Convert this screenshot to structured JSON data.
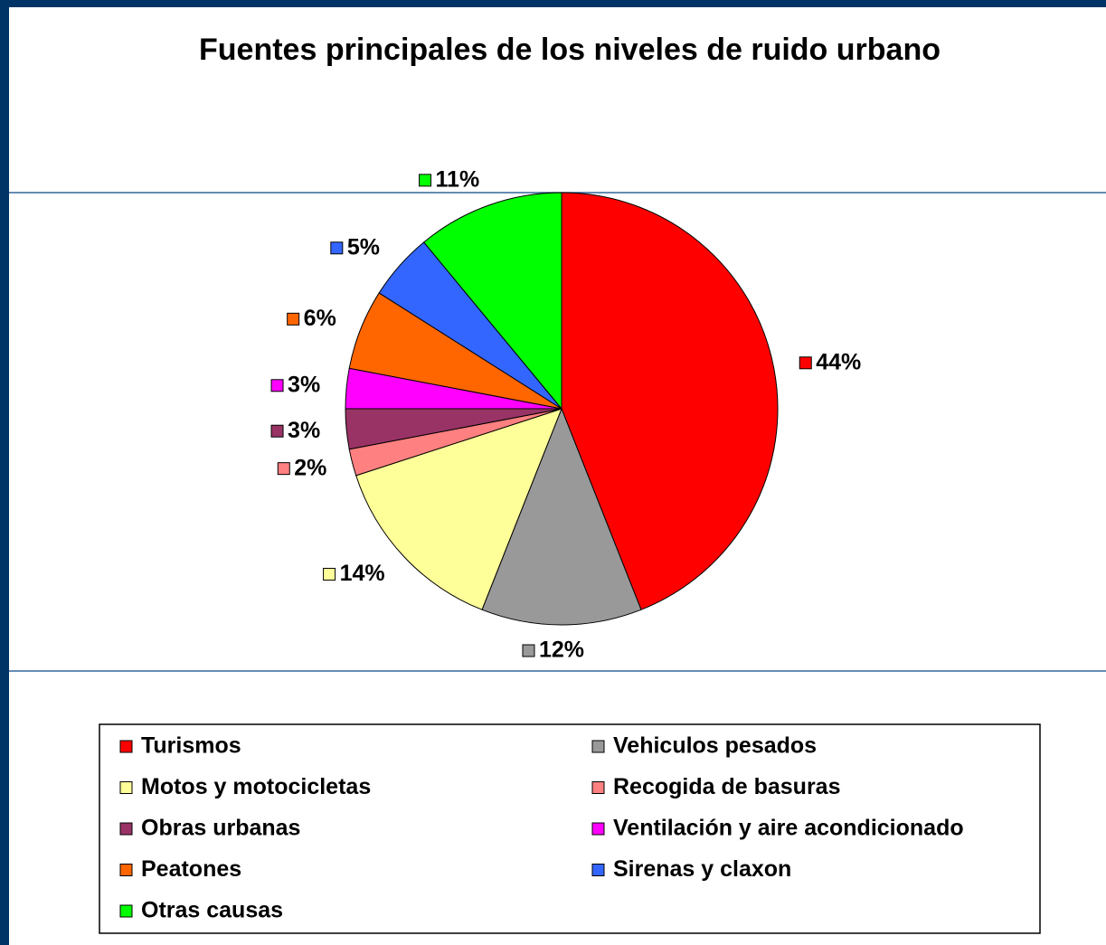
{
  "chart_data": {
    "type": "pie",
    "title": "Fuentes principales de los niveles de ruido urbano",
    "categories": [
      "Turismos",
      "Vehiculos pesados",
      "Motos y motocicletas",
      "Recogida de basuras",
      "Obras urbanas",
      "Ventilación y aire acondicionado",
      "Peatones",
      "Sirenas y claxon",
      "Otras causas"
    ],
    "values": [
      44,
      12,
      14,
      2,
      3,
      3,
      6,
      5,
      11
    ],
    "value_labels": [
      "44%",
      "12%",
      "14%",
      "2%",
      "3%",
      "3%",
      "6%",
      "5%",
      "11%"
    ],
    "colors": [
      "#ff0000",
      "#999999",
      "#ffff99",
      "#ff8080",
      "#993366",
      "#ff00ff",
      "#ff6600",
      "#3366ff",
      "#00ff00"
    ],
    "legend": "bottom"
  }
}
